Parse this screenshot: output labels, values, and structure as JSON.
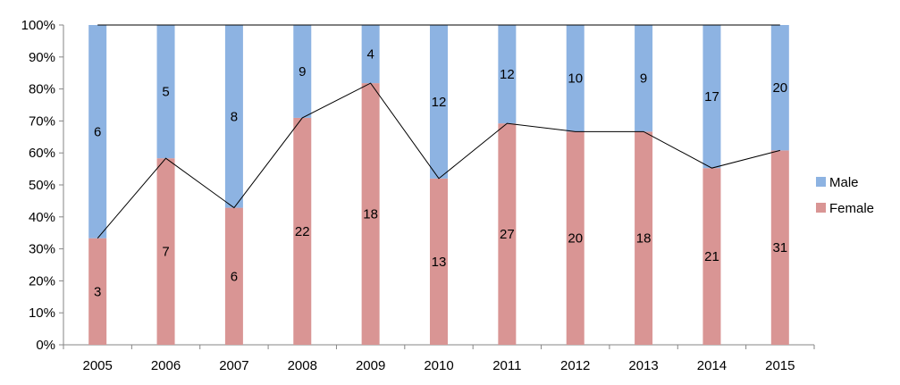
{
  "chart_data": {
    "type": "bar",
    "stacked": "percent",
    "categories": [
      "2005",
      "2006",
      "2007",
      "2008",
      "2009",
      "2010",
      "2011",
      "2012",
      "2013",
      "2014",
      "2015"
    ],
    "series": [
      {
        "name": "Female",
        "values": [
          3,
          7,
          6,
          22,
          18,
          13,
          27,
          20,
          18,
          21,
          31
        ],
        "color": "#D99594"
      },
      {
        "name": "Male",
        "values": [
          6,
          5,
          8,
          9,
          4,
          12,
          12,
          10,
          9,
          17,
          20
        ],
        "color": "#8DB3E2"
      }
    ],
    "connector_line": {
      "series": "Female",
      "color": "#000000"
    },
    "y_ticks": [
      "0%",
      "10%",
      "20%",
      "30%",
      "40%",
      "50%",
      "60%",
      "70%",
      "80%",
      "90%",
      "100%"
    ],
    "ylim": [
      0,
      100
    ],
    "legend": {
      "position": "right",
      "entries": [
        "Male",
        "Female"
      ]
    },
    "grid": false,
    "title": "",
    "xlabel": "",
    "ylabel": ""
  }
}
